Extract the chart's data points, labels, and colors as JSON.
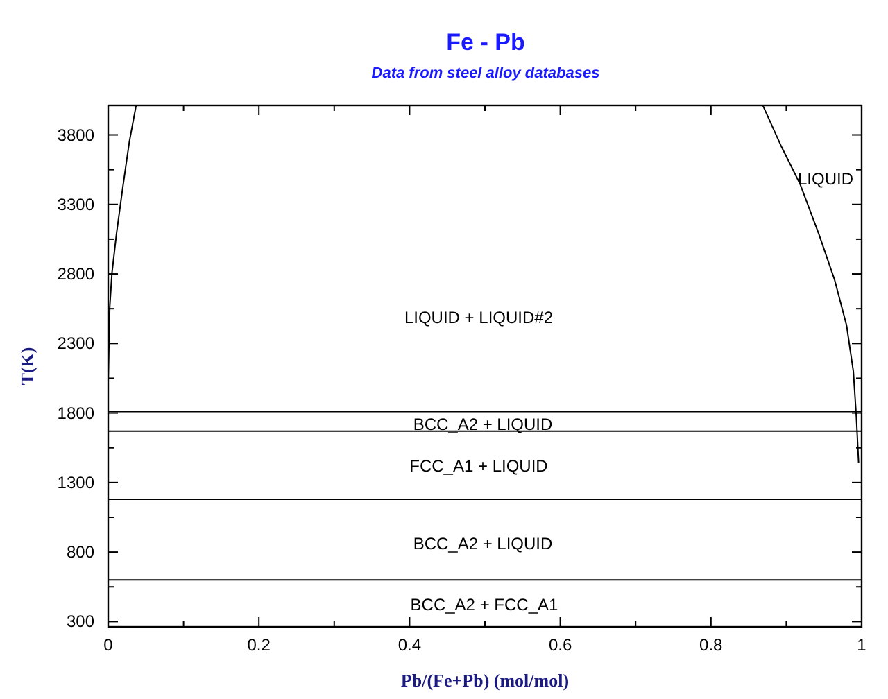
{
  "chart_data": {
    "type": "line",
    "title": "Fe - Pb",
    "subtitle": "Data from steel alloy databases",
    "xlabel": "Pb/(Fe+Pb) (mol/mol)",
    "ylabel": "T(K)",
    "xlim": [
      0,
      1
    ],
    "ylim": [
      262,
      4012
    ],
    "xticks": [
      0,
      {
        "value": 0.1,
        "label": null
      },
      0.2,
      {
        "value": 0.3,
        "label": null
      },
      0.4,
      {
        "value": 0.5,
        "label": null
      },
      0.6,
      {
        "value": 0.7,
        "label": null
      },
      0.8,
      {
        "value": 0.9,
        "label": null
      },
      1
    ],
    "yticks": [
      300,
      {
        "value": 550,
        "label": null
      },
      800,
      {
        "value": 1050,
        "label": null
      },
      1300,
      {
        "value": 1550,
        "label": null
      },
      1800,
      {
        "value": 2050,
        "label": null
      },
      2300,
      {
        "value": 2550,
        "label": null
      },
      2800,
      {
        "value": 3050,
        "label": null
      },
      3300,
      {
        "value": 3550,
        "label": null
      },
      3800
    ],
    "grid": false,
    "marker": "none",
    "line_style": "solid",
    "series": [
      {
        "color": "#000000",
        "x": [
          0,
          0.002,
          0.005,
          0.011,
          0.019,
          0.028,
          0.037
        ],
        "values": [
          2030,
          2560,
          2810,
          3090,
          3410,
          3750,
          4010
        ]
      },
      {
        "color": "#000000",
        "x": [
          0.869,
          0.894,
          0.918,
          0.943,
          0.964,
          0.98,
          0.989,
          0.993,
          0.996
        ],
        "values": [
          4010,
          3710,
          3450,
          3090,
          2760,
          2430,
          2100,
          1770,
          1440
        ]
      },
      {
        "color": "#000000",
        "x": [
          0,
          1
        ],
        "values": [
          1810,
          1810
        ]
      },
      {
        "color": "#000000",
        "x": [
          0,
          1
        ],
        "values": [
          1670,
          1670
        ]
      },
      {
        "color": "#000000",
        "x": [
          0,
          1
        ],
        "values": [
          1180,
          1180
        ]
      },
      {
        "color": "#000000",
        "x": [
          0,
          1
        ],
        "values": [
          600,
          600
        ]
      }
    ],
    "annotations": [
      "LIQUID",
      "LIQUID + LIQUID#2",
      "BCC_A2 + LIQUID",
      "FCC_A1 + LIQUID",
      "BCC_A2 + LIQUID",
      "BCC_A2 + FCC_A1"
    ]
  }
}
